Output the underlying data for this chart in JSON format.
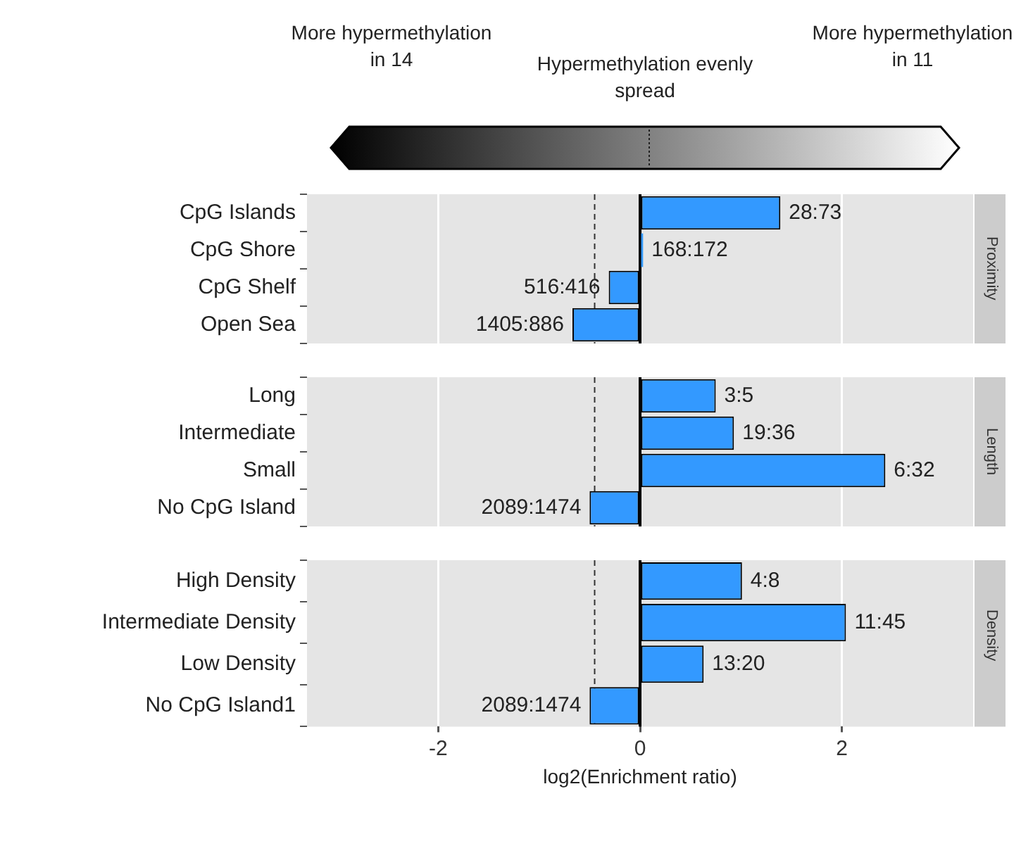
{
  "chart_data": [
    {
      "type": "bar",
      "orientation": "horizontal",
      "y2label": "Proximity",
      "annotations": [
        "More hypermethylation in 14",
        "Hypermethylation evenly spread",
        "More hypermethylation in 11",
        {
          "text": "28:73",
          "x": 1.39,
          "y": "CpG Islands"
        },
        {
          "text": "168:172",
          "x": 0.03,
          "y": "CpG Shore"
        },
        {
          "text": "516:416",
          "x": -0.31,
          "y": "CpG Shelf"
        },
        {
          "text": "1405:886",
          "x": -0.67,
          "y": "Open Sea"
        }
      ],
      "categories": [
        "CpG Islands",
        "CpG Shore",
        "CpG Shelf",
        "Open Sea"
      ],
      "values": [
        1.39,
        0.03,
        -0.31,
        -0.67
      ],
      "color": "#3399ff",
      "xlim": [
        -3.3,
        3.3
      ],
      "xticks": [
        -2,
        0,
        2
      ],
      "grid": "x",
      "tick_labels": "y",
      "ref_lines": [
        {
          "axis": "x",
          "value": 0,
          "line_style": "solid",
          "color": "#000000"
        },
        {
          "axis": "x",
          "value": -0.45,
          "line_style": "dashed",
          "color": "#333333"
        }
      ]
    },
    {
      "type": "bar",
      "orientation": "horizontal",
      "y2label": "Length",
      "annotations": [
        {
          "text": "3:5",
          "x": 0.75,
          "y": "Long"
        },
        {
          "text": "19:36",
          "x": 0.93,
          "y": "Intermediate"
        },
        {
          "text": "6:32",
          "x": 2.43,
          "y": "Small"
        },
        {
          "text": "2089:1474",
          "x": -0.5,
          "y": "No CpG Island"
        }
      ],
      "categories": [
        "Long",
        "Intermediate",
        "Small",
        "No CpG Island"
      ],
      "values": [
        0.75,
        0.93,
        2.43,
        -0.5
      ],
      "color": "#3399ff",
      "xlim": [
        -3.3,
        3.3
      ],
      "xticks": [
        -2,
        0,
        2
      ],
      "grid": "x",
      "tick_labels": "y",
      "ref_lines": [
        {
          "axis": "x",
          "value": 0,
          "line_style": "solid",
          "color": "#000000"
        },
        {
          "axis": "x",
          "value": -0.45,
          "line_style": "dashed",
          "color": "#333333"
        }
      ]
    },
    {
      "type": "bar",
      "orientation": "horizontal",
      "y2label": "Density",
      "xlabel": "log2(Enrichment ratio)",
      "annotations": [
        {
          "text": "4:8",
          "x": 1.01,
          "y": "High Density"
        },
        {
          "text": "11:45",
          "x": 2.04,
          "y": "Intermediate Density"
        },
        {
          "text": "13:20",
          "x": 0.63,
          "y": "Low Density"
        },
        {
          "text": "2089:1474",
          "x": -0.5,
          "y": "No CpG Island1"
        }
      ],
      "categories": [
        "High Density",
        "Intermediate Density",
        "Low Density",
        "No CpG Island1"
      ],
      "values": [
        1.01,
        2.04,
        0.63,
        -0.5
      ],
      "color": "#3399ff",
      "xlim": [
        -3.3,
        3.3
      ],
      "xticks": [
        -2,
        0,
        2
      ],
      "grid": "x",
      "ref_lines": [
        {
          "axis": "x",
          "value": 0,
          "line_style": "solid",
          "color": "#000000"
        },
        {
          "axis": "x",
          "value": -0.45,
          "line_style": "dashed",
          "color": "#333333"
        }
      ]
    }
  ]
}
